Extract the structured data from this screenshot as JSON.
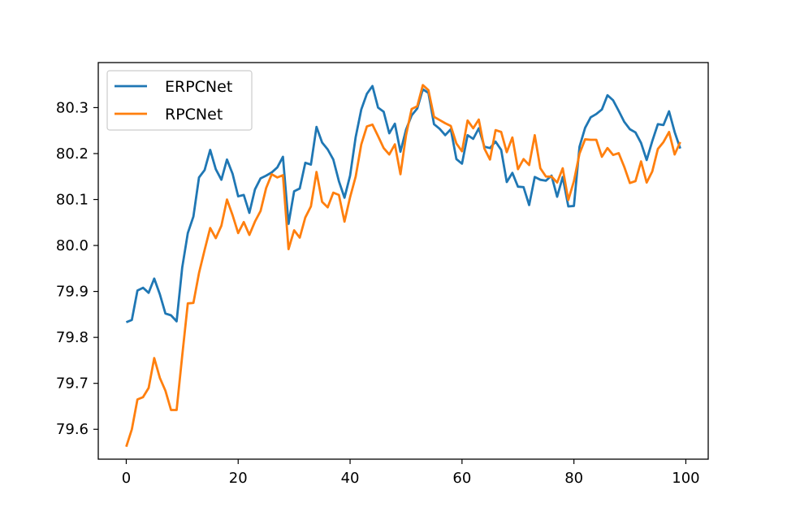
{
  "chart_data": {
    "type": "line",
    "title": "",
    "xlabel": "",
    "ylabel": "",
    "xlim": [
      -5,
      104
    ],
    "ylim": [
      79.535,
      80.398
    ],
    "xticks": [
      0,
      20,
      40,
      60,
      80,
      100
    ],
    "yticks": [
      79.6,
      79.7,
      79.8,
      79.9,
      80.0,
      80.1,
      80.2,
      80.3
    ],
    "ytick_labels": [
      "79.6",
      "79.7",
      "79.8",
      "79.9",
      "80.0",
      "80.1",
      "80.2",
      "80.3"
    ],
    "grid": false,
    "legend_position": "top-left",
    "series": [
      {
        "name": "ERPCNet",
        "color": "#1f77b4",
        "x": [
          0,
          1,
          2,
          3,
          4,
          5,
          6,
          7,
          8,
          9,
          10,
          11,
          12,
          13,
          14,
          15,
          16,
          17,
          18,
          19,
          20,
          21,
          22,
          23,
          24,
          25,
          26,
          27,
          28,
          29,
          30,
          31,
          32,
          33,
          34,
          35,
          36,
          37,
          38,
          39,
          40,
          41,
          42,
          43,
          44,
          45,
          46,
          47,
          48,
          49,
          50,
          51,
          52,
          53,
          54,
          55,
          56,
          57,
          58,
          59,
          60,
          61,
          62,
          63,
          64,
          65,
          66,
          67,
          68,
          69,
          70,
          71,
          72,
          73,
          74,
          75,
          76,
          77,
          78,
          79,
          80,
          81,
          82,
          83,
          84,
          85,
          86,
          87,
          88,
          89,
          90,
          91,
          92,
          93,
          94,
          95,
          96,
          97,
          98,
          99
        ],
        "values": [
          79.833,
          79.838,
          79.902,
          79.908,
          79.897,
          79.928,
          79.894,
          79.852,
          79.848,
          79.835,
          79.952,
          80.027,
          80.063,
          80.148,
          80.164,
          80.208,
          80.166,
          80.143,
          80.187,
          80.156,
          80.107,
          80.11,
          80.071,
          80.122,
          80.146,
          80.152,
          80.159,
          80.17,
          80.193,
          80.047,
          80.118,
          80.124,
          80.18,
          80.176,
          80.258,
          80.224,
          80.209,
          80.187,
          80.14,
          80.104,
          80.152,
          80.236,
          80.296,
          80.33,
          80.347,
          80.3,
          80.291,
          80.244,
          80.265,
          80.204,
          80.252,
          80.283,
          80.298,
          80.34,
          80.332,
          80.264,
          80.254,
          80.24,
          80.253,
          80.188,
          80.178,
          80.24,
          80.232,
          80.255,
          80.215,
          80.212,
          80.226,
          80.208,
          80.138,
          80.158,
          80.128,
          80.127,
          80.088,
          80.149,
          80.143,
          80.141,
          80.152,
          80.106,
          80.149,
          80.085,
          80.086,
          80.215,
          80.256,
          80.279,
          80.286,
          80.296,
          80.327,
          80.316,
          80.293,
          80.269,
          80.253,
          80.246,
          80.223,
          80.186,
          80.227,
          80.264,
          80.262,
          80.292,
          80.247,
          80.211
        ]
      },
      {
        "name": "RPCNet",
        "color": "#ff7f0e",
        "x": [
          0,
          1,
          2,
          3,
          4,
          5,
          6,
          7,
          8,
          9,
          10,
          11,
          12,
          13,
          14,
          15,
          16,
          17,
          18,
          19,
          20,
          21,
          22,
          23,
          24,
          25,
          26,
          27,
          28,
          29,
          30,
          31,
          32,
          33,
          34,
          35,
          36,
          37,
          38,
          39,
          40,
          41,
          42,
          43,
          44,
          45,
          46,
          47,
          48,
          49,
          50,
          51,
          52,
          53,
          54,
          55,
          56,
          57,
          58,
          59,
          60,
          61,
          62,
          63,
          64,
          65,
          66,
          67,
          68,
          69,
          70,
          71,
          72,
          73,
          74,
          75,
          76,
          77,
          78,
          79,
          80,
          81,
          82,
          83,
          84,
          85,
          86,
          87,
          88,
          89,
          90,
          91,
          92,
          93,
          94,
          95,
          96,
          97,
          98,
          99
        ],
        "values": [
          79.562,
          79.6,
          79.665,
          79.67,
          79.69,
          79.755,
          79.712,
          79.684,
          79.642,
          79.642,
          79.76,
          79.874,
          79.875,
          79.94,
          79.99,
          80.038,
          80.016,
          80.043,
          80.1,
          80.066,
          80.027,
          80.051,
          80.023,
          80.052,
          80.075,
          80.125,
          80.155,
          80.148,
          80.153,
          79.992,
          80.033,
          80.017,
          80.061,
          80.085,
          80.16,
          80.095,
          80.083,
          80.115,
          80.11,
          80.052,
          80.105,
          80.15,
          80.22,
          80.259,
          80.263,
          80.238,
          80.212,
          80.198,
          80.22,
          80.155,
          80.24,
          80.297,
          80.303,
          80.349,
          80.338,
          80.28,
          80.273,
          80.266,
          80.26,
          80.222,
          80.205,
          80.272,
          80.255,
          80.274,
          80.211,
          80.187,
          80.251,
          80.247,
          80.203,
          80.235,
          80.166,
          80.188,
          80.175,
          80.24,
          80.168,
          80.15,
          80.15,
          80.137,
          80.168,
          80.099,
          80.14,
          80.2,
          80.231,
          80.23,
          80.23,
          80.193,
          80.212,
          80.197,
          80.201,
          80.171,
          80.136,
          80.14,
          80.183,
          80.137,
          80.161,
          80.21,
          80.225,
          80.247,
          80.198,
          80.225
        ]
      }
    ]
  }
}
